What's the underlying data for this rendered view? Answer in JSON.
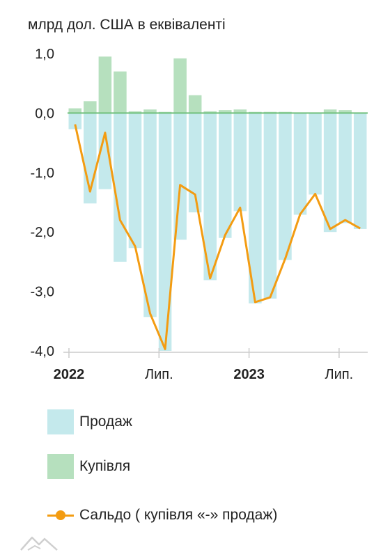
{
  "unit_label": "млрд дол. США в еквіваленті",
  "colors": {
    "sales": "#c4e9ec",
    "purchases": "#b6e0be",
    "balance": "#f39c12",
    "zero_line": "#6fbf7c",
    "axis": "#cccccc"
  },
  "legend": {
    "sales": "Продаж",
    "purchases": "Купівля",
    "balance": "Сальдо ( купівля «-» продаж)"
  },
  "logo_icon": "mountain-logo-icon",
  "chart_data": {
    "type": "bar",
    "y_ticks": [
      "1,0",
      "0,0",
      "-1,0",
      "-2,0",
      "-3,0",
      "-4,0"
    ],
    "y_tick_values": [
      1,
      0,
      -1,
      -2,
      -3,
      -4
    ],
    "ylim": [
      -4,
      1
    ],
    "x_labels": [
      {
        "text": "2022",
        "index": 0,
        "bold": true
      },
      {
        "text": "Лип.",
        "index": 6,
        "bold": false
      },
      {
        "text": "2023",
        "index": 12,
        "bold": true
      },
      {
        "text": "Лип.",
        "index": 18,
        "bold": false
      }
    ],
    "n_periods": 20,
    "series": [
      {
        "name": "Купівля",
        "kind": "bar",
        "values": [
          0.08,
          0.2,
          0.95,
          0.7,
          0.03,
          0.06,
          0.02,
          0.92,
          0.3,
          0.03,
          0.05,
          0.06,
          0.02,
          0.02,
          0.02,
          0.01,
          0.01,
          0.06,
          0.05,
          0.01
        ]
      },
      {
        "name": "Продаж",
        "kind": "bar",
        "values": [
          -0.27,
          -1.52,
          -1.28,
          -2.5,
          -2.27,
          -3.43,
          -4.0,
          -2.13,
          -1.67,
          -2.81,
          -2.1,
          -1.65,
          -3.2,
          -3.12,
          -2.47,
          -1.71,
          -1.37,
          -2.0,
          -1.85,
          -1.95
        ]
      },
      {
        "name": "Сальдо ( купівля «-» продаж)",
        "kind": "line",
        "values": [
          -0.19,
          -1.32,
          -0.33,
          -1.8,
          -2.24,
          -3.37,
          -3.97,
          -1.21,
          -1.37,
          -2.78,
          -2.05,
          -1.59,
          -3.18,
          -3.1,
          -2.45,
          -1.7,
          -1.36,
          -1.95,
          -1.8,
          -1.94
        ]
      }
    ]
  }
}
